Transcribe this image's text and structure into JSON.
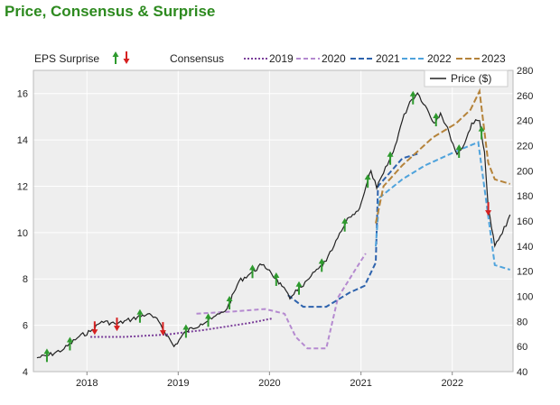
{
  "title": "Price, Consensus & Surprise",
  "colors": {
    "price": "#222222",
    "c2019": "#7b3f9a",
    "c2020": "#b58ad0",
    "c2021": "#2e63ad",
    "c2022": "#4fa3dc",
    "c2023": "#b5833a",
    "up": "#2e9a2e",
    "down": "#d62020",
    "plot_bg": "#eeeeee"
  },
  "chart_data": {
    "type": "line",
    "x_range": [
      "2017-06-01",
      "2022-09-01"
    ],
    "x_ticks": [
      "2018",
      "2019",
      "2020",
      "2021",
      "2022"
    ],
    "eps_axis": {
      "range": [
        4,
        17
      ],
      "ticks": [
        4,
        6,
        8,
        10,
        12,
        14,
        16
      ]
    },
    "price_axis": {
      "range": [
        40,
        280
      ],
      "ticks": [
        40,
        60,
        80,
        100,
        120,
        140,
        160,
        180,
        200,
        220,
        240,
        260,
        280
      ]
    },
    "legend": {
      "eps_surprise": "EPS Surprise",
      "consensus": "Consensus",
      "price": "Price ($)",
      "years": [
        "2019",
        "2020",
        "2021",
        "2022",
        "2023"
      ]
    },
    "price": {
      "name": "Price ($)",
      "points": [
        [
          "2017-06-15",
          51
        ],
        [
          "2017-08-01",
          53
        ],
        [
          "2017-10-01",
          58
        ],
        [
          "2017-12-01",
          68
        ],
        [
          "2018-01-15",
          72
        ],
        [
          "2018-03-01",
          80
        ],
        [
          "2018-05-01",
          78
        ],
        [
          "2018-07-01",
          82
        ],
        [
          "2018-09-01",
          86
        ],
        [
          "2018-10-15",
          80
        ],
        [
          "2018-12-15",
          60
        ],
        [
          "2019-02-01",
          72
        ],
        [
          "2019-04-01",
          78
        ],
        [
          "2019-05-15",
          82
        ],
        [
          "2019-06-15",
          86
        ],
        [
          "2019-07-15",
          90
        ],
        [
          "2019-09-01",
          112
        ],
        [
          "2019-10-15",
          118
        ],
        [
          "2019-12-01",
          125
        ],
        [
          "2020-01-01",
          121
        ],
        [
          "2020-01-25",
          114
        ],
        [
          "2020-02-20",
          108
        ],
        [
          "2020-03-23",
          98
        ],
        [
          "2020-04-15",
          105
        ],
        [
          "2020-05-15",
          108
        ],
        [
          "2020-06-15",
          116
        ],
        [
          "2020-07-15",
          122
        ],
        [
          "2020-08-15",
          128
        ],
        [
          "2020-09-15",
          140
        ],
        [
          "2020-10-15",
          152
        ],
        [
          "2020-11-15",
          163
        ],
        [
          "2020-12-20",
          168
        ],
        [
          "2021-01-15",
          183
        ],
        [
          "2021-02-10",
          200
        ],
        [
          "2021-03-05",
          186
        ],
        [
          "2021-04-01",
          198
        ],
        [
          "2021-05-10",
          215
        ],
        [
          "2021-06-15",
          240
        ],
        [
          "2021-07-15",
          255
        ],
        [
          "2021-08-15",
          262
        ],
        [
          "2021-09-15",
          252
        ],
        [
          "2021-10-20",
          238
        ],
        [
          "2021-11-15",
          246
        ],
        [
          "2021-12-20",
          230
        ],
        [
          "2022-01-20",
          213
        ],
        [
          "2022-02-20",
          222
        ],
        [
          "2022-03-20",
          238
        ],
        [
          "2022-04-20",
          240
        ],
        [
          "2022-05-10",
          215
        ],
        [
          "2022-05-25",
          170
        ],
        [
          "2022-06-20",
          140
        ],
        [
          "2022-07-20",
          150
        ],
        [
          "2022-08-20",
          165
        ]
      ]
    },
    "consensus": [
      {
        "name": "2019",
        "points": [
          [
            "2018-01-15",
            5.5
          ],
          [
            "2018-06-01",
            5.5
          ],
          [
            "2018-11-15",
            5.6
          ],
          [
            "2019-04-15",
            5.8
          ],
          [
            "2019-10-15",
            6.1
          ],
          [
            "2020-01-15",
            6.3
          ]
        ]
      },
      {
        "name": "2020",
        "points": [
          [
            "2019-03-15",
            6.5
          ],
          [
            "2019-08-15",
            6.6
          ],
          [
            "2019-12-15",
            6.7
          ],
          [
            "2020-03-01",
            6.5
          ],
          [
            "2020-04-15",
            5.5
          ],
          [
            "2020-06-01",
            5.0
          ],
          [
            "2020-08-15",
            5.0
          ],
          [
            "2020-10-01",
            7.2
          ],
          [
            "2020-12-15",
            8.5
          ],
          [
            "2021-01-20",
            9.1
          ]
        ]
      },
      {
        "name": "2021",
        "points": [
          [
            "2020-03-15",
            7.3
          ],
          [
            "2020-05-15",
            6.8
          ],
          [
            "2020-08-15",
            6.8
          ],
          [
            "2020-11-15",
            7.4
          ],
          [
            "2021-01-15",
            7.7
          ],
          [
            "2021-03-01",
            8.7
          ],
          [
            "2021-03-10",
            12.0
          ],
          [
            "2021-06-15",
            13.2
          ],
          [
            "2021-08-15",
            13.4
          ]
        ]
      },
      {
        "name": "2022",
        "points": [
          [
            "2021-03-01",
            9.4
          ],
          [
            "2021-03-15",
            11.5
          ],
          [
            "2021-06-15",
            12.3
          ],
          [
            "2021-09-15",
            12.9
          ],
          [
            "2022-01-15",
            13.5
          ],
          [
            "2022-04-15",
            13.9
          ],
          [
            "2022-05-15",
            11.5
          ],
          [
            "2022-06-20",
            8.6
          ],
          [
            "2022-08-20",
            8.4
          ]
        ]
      },
      {
        "name": "2023",
        "points": [
          [
            "2021-03-01",
            10.4
          ],
          [
            "2021-04-01",
            12.0
          ],
          [
            "2021-06-15",
            12.9
          ],
          [
            "2021-10-15",
            14.1
          ],
          [
            "2022-01-15",
            14.7
          ],
          [
            "2022-03-15",
            15.3
          ],
          [
            "2022-04-20",
            16.1
          ],
          [
            "2022-05-25",
            13.0
          ],
          [
            "2022-06-20",
            12.3
          ],
          [
            "2022-08-20",
            12.1
          ]
        ]
      }
    ],
    "surprises": [
      {
        "date": "2017-07-25",
        "dir": "up"
      },
      {
        "date": "2017-10-25",
        "dir": "up"
      },
      {
        "date": "2018-02-01",
        "dir": "down"
      },
      {
        "date": "2018-05-01",
        "dir": "down"
      },
      {
        "date": "2018-08-01",
        "dir": "up"
      },
      {
        "date": "2018-11-01",
        "dir": "down"
      },
      {
        "date": "2019-02-01",
        "dir": "up"
      },
      {
        "date": "2019-05-01",
        "dir": "up"
      },
      {
        "date": "2019-07-25",
        "dir": "up"
      },
      {
        "date": "2019-10-25",
        "dir": "up"
      },
      {
        "date": "2020-01-28",
        "dir": "up"
      },
      {
        "date": "2020-04-28",
        "dir": "up"
      },
      {
        "date": "2020-07-28",
        "dir": "up"
      },
      {
        "date": "2020-10-28",
        "dir": "up"
      },
      {
        "date": "2021-01-28",
        "dir": "up"
      },
      {
        "date": "2021-04-28",
        "dir": "up"
      },
      {
        "date": "2021-07-28",
        "dir": "up"
      },
      {
        "date": "2021-10-28",
        "dir": "up"
      },
      {
        "date": "2022-01-28",
        "dir": "up"
      },
      {
        "date": "2022-04-28",
        "dir": "up"
      },
      {
        "date": "2022-05-25",
        "dir": "down"
      }
    ]
  }
}
